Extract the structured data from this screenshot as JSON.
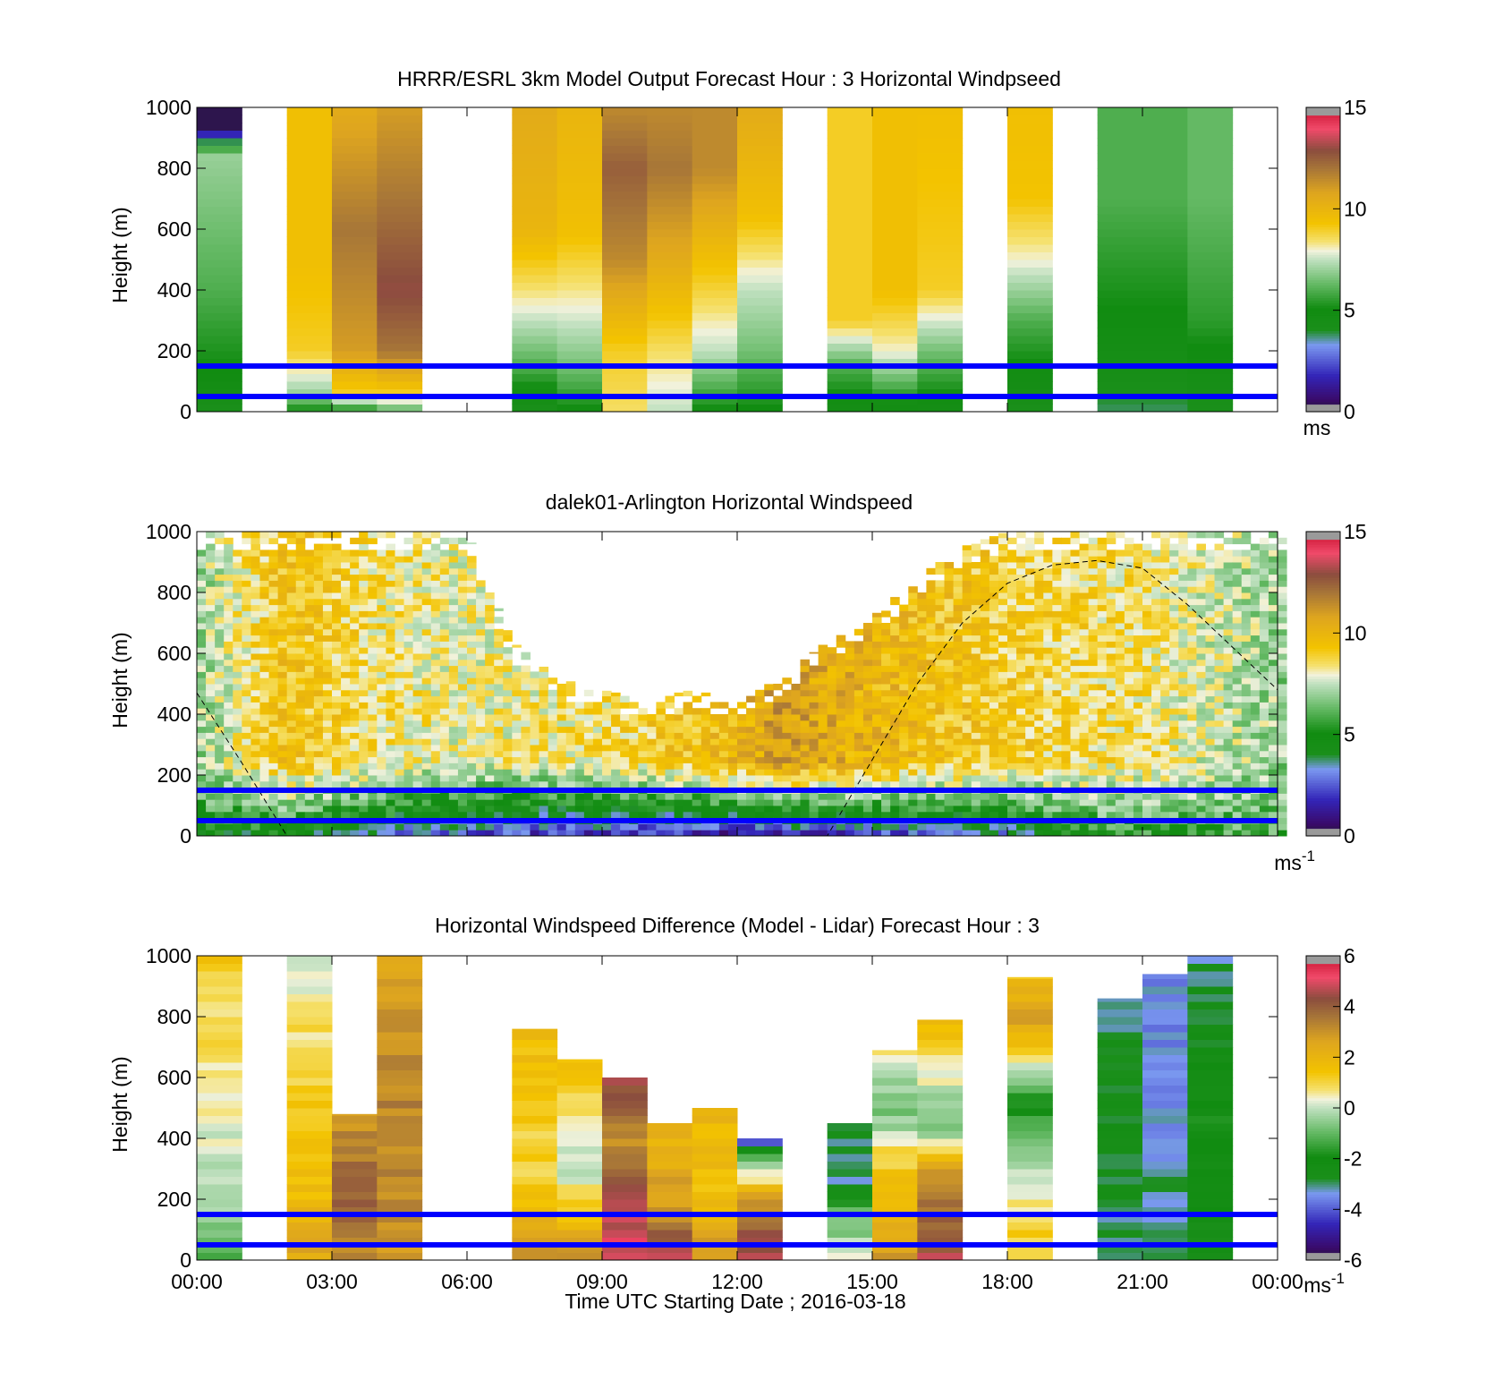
{
  "figure": {
    "xlabel": "Time UTC  Starting Date ; 2016-03-18",
    "x_ticks": [
      "00:00",
      "03:00",
      "06:00",
      "09:00",
      "12:00",
      "15:00",
      "18:00",
      "21:00",
      "00:00"
    ]
  },
  "colors": {
    "reference_lines": "#0000ff",
    "background": "#ffffff"
  },
  "chart_data": [
    {
      "type": "heatmap",
      "title": "HRRR/ESRL 3km Model Output   Forecast Hour : 3 Horizontal Windpseed",
      "ylabel": "Height (m)",
      "xlim": [
        0,
        24
      ],
      "ylim": [
        0,
        1000
      ],
      "y_ticks": [
        0,
        200,
        400,
        600,
        800,
        1000
      ],
      "colorbar": {
        "min": 0,
        "max": 15,
        "ticks": [
          0,
          5,
          10,
          15
        ],
        "unit": "ms",
        "unit_sup": ""
      },
      "reference_lines_m": [
        50,
        150
      ],
      "columns": [
        {
          "t": 0,
          "profile": [
            [
              0,
              4
            ],
            [
              120,
              5
            ],
            [
              400,
              6
            ],
            [
              850,
              7
            ],
            [
              930,
              0.3
            ]
          ]
        },
        {
          "t": 2,
          "profile": [
            [
              0,
              5
            ],
            [
              60,
              7
            ],
            [
              200,
              9
            ],
            [
              500,
              9.5
            ],
            [
              1000,
              9.5
            ]
          ]
        },
        {
          "t": 3,
          "profile": [
            [
              0,
              5
            ],
            [
              60,
              9
            ],
            [
              200,
              11
            ],
            [
              600,
              12
            ],
            [
              1000,
              10.5
            ]
          ]
        },
        {
          "t": 4,
          "profile": [
            [
              0,
              6
            ],
            [
              60,
              9
            ],
            [
              200,
              12
            ],
            [
              400,
              13
            ],
            [
              1000,
              11
            ]
          ]
        },
        {
          "t": 7,
          "profile": [
            [
              0,
              4
            ],
            [
              150,
              6
            ],
            [
              350,
              8
            ],
            [
              600,
              10
            ],
            [
              1000,
              10.5
            ]
          ]
        },
        {
          "t": 8,
          "profile": [
            [
              0,
              5
            ],
            [
              150,
              6.5
            ],
            [
              350,
              8
            ],
            [
              600,
              9.5
            ],
            [
              1000,
              10
            ]
          ]
        },
        {
          "t": 9,
          "profile": [
            [
              0,
              8.5
            ],
            [
              200,
              9
            ],
            [
              500,
              11.5
            ],
            [
              800,
              12.5
            ],
            [
              1000,
              11.5
            ]
          ]
        },
        {
          "t": 10,
          "profile": [
            [
              0,
              7.5
            ],
            [
              200,
              8.5
            ],
            [
              500,
              10.5
            ],
            [
              800,
              12
            ],
            [
              1000,
              11.5
            ]
          ]
        },
        {
          "t": 11,
          "profile": [
            [
              0,
              5
            ],
            [
              200,
              7.5
            ],
            [
              500,
              9.5
            ],
            [
              800,
              11.5
            ],
            [
              1000,
              11.5
            ]
          ]
        },
        {
          "t": 12,
          "profile": [
            [
              0,
              5
            ],
            [
              200,
              6.5
            ],
            [
              400,
              7.5
            ],
            [
              650,
              9.5
            ],
            [
              1000,
              10.5
            ]
          ]
        },
        {
          "t": 14,
          "profile": [
            [
              0,
              4.5
            ],
            [
              150,
              6
            ],
            [
              300,
              9
            ],
            [
              700,
              9
            ],
            [
              1000,
              9
            ]
          ]
        },
        {
          "t": 15,
          "profile": [
            [
              0,
              4.5
            ],
            [
              200,
              8
            ],
            [
              400,
              9.5
            ],
            [
              1000,
              9.5
            ]
          ]
        },
        {
          "t": 16,
          "profile": [
            [
              0,
              4.5
            ],
            [
              200,
              6.5
            ],
            [
              400,
              9
            ],
            [
              1000,
              9.5
            ]
          ]
        },
        {
          "t": 18,
          "profile": [
            [
              0,
              4
            ],
            [
              300,
              6
            ],
            [
              500,
              8
            ],
            [
              700,
              9.3
            ],
            [
              1000,
              9.5
            ]
          ]
        },
        {
          "t": 20,
          "profile": [
            [
              0,
              3.8
            ],
            [
              300,
              5
            ],
            [
              700,
              6
            ],
            [
              1000,
              6
            ]
          ]
        },
        {
          "t": 21,
          "profile": [
            [
              0,
              3.8
            ],
            [
              300,
              5
            ],
            [
              700,
              6
            ],
            [
              1000,
              6
            ]
          ]
        },
        {
          "t": 22,
          "profile": [
            [
              0,
              4
            ],
            [
              300,
              5.5
            ],
            [
              700,
              6.3
            ],
            [
              1000,
              6.3
            ]
          ]
        }
      ]
    },
    {
      "type": "heatmap",
      "title": "dalek01-Arlington  Horizontal Windspeed",
      "ylabel": "Height (m)",
      "xlim": [
        0,
        24
      ],
      "ylim": [
        0,
        1000
      ],
      "y_ticks": [
        0,
        200,
        400,
        600,
        800,
        1000
      ],
      "colorbar": {
        "min": 0,
        "max": 15,
        "ticks": [
          0,
          5,
          10,
          15
        ],
        "unit": "ms",
        "unit_sup": "-1"
      },
      "reference_lines_m": [
        50,
        150
      ],
      "boundary_layer_curve": [
        [
          0,
          470
        ],
        [
          1,
          240
        ],
        [
          2,
          0
        ],
        [
          14,
          0
        ],
        [
          15,
          250
        ],
        [
          16,
          500
        ],
        [
          17,
          700
        ],
        [
          18,
          830
        ],
        [
          19,
          890
        ],
        [
          20,
          905
        ],
        [
          21,
          880
        ],
        [
          22,
          760
        ],
        [
          23,
          620
        ],
        [
          24,
          480
        ]
      ],
      "top_of_data_m": [
        [
          0,
          1000
        ],
        [
          6,
          1000
        ],
        [
          7,
          640
        ],
        [
          8,
          520
        ],
        [
          9,
          480
        ],
        [
          10,
          450
        ],
        [
          11,
          480
        ],
        [
          12,
          450
        ],
        [
          13,
          520
        ],
        [
          14,
          640
        ],
        [
          15,
          720
        ],
        [
          16,
          850
        ],
        [
          17,
          950
        ],
        [
          18,
          1000
        ],
        [
          24,
          1000
        ]
      ],
      "surface_speed": [
        [
          0,
          5
        ],
        [
          6,
          2
        ],
        [
          9,
          1.5
        ],
        [
          12,
          1
        ],
        [
          14,
          1.5
        ],
        [
          16,
          2
        ],
        [
          18,
          3
        ],
        [
          20,
          5
        ],
        [
          24,
          6
        ]
      ],
      "upper_speed": [
        [
          0,
          7
        ],
        [
          2,
          9.5
        ],
        [
          4,
          8.5
        ],
        [
          6,
          8
        ],
        [
          9,
          8.5
        ],
        [
          12,
          10
        ],
        [
          13,
          11
        ],
        [
          15,
          10
        ],
        [
          18,
          9
        ],
        [
          21,
          8.5
        ],
        [
          24,
          7
        ]
      ]
    },
    {
      "type": "heatmap",
      "title": "Horizontal Windspeed Difference (Model - Lidar) Forecast Hour : 3",
      "ylabel": "Height (m)",
      "xlim": [
        0,
        24
      ],
      "ylim": [
        0,
        1000
      ],
      "y_ticks": [
        0,
        200,
        400,
        600,
        800,
        1000
      ],
      "colorbar": {
        "min": -6,
        "max": 6,
        "ticks": [
          -6,
          -4,
          -2,
          0,
          2,
          4,
          6
        ],
        "unit": "ms",
        "unit_sup": "-1"
      },
      "reference_lines_m": [
        50,
        150
      ],
      "columns": [
        {
          "t": 0,
          "top": 1000,
          "profile": [
            [
              0,
              -1
            ],
            [
              300,
              0
            ],
            [
              700,
              0.8
            ],
            [
              1000,
              1.3
            ]
          ]
        },
        {
          "t": 2,
          "top": 1000,
          "profile": [
            [
              0,
              2.5
            ],
            [
              300,
              1.5
            ],
            [
              700,
              1
            ],
            [
              1000,
              0
            ]
          ]
        },
        {
          "t": 3,
          "top": 480,
          "profile": [
            [
              0,
              3
            ],
            [
              200,
              4
            ],
            [
              480,
              3
            ]
          ]
        },
        {
          "t": 4,
          "top": 1000,
          "profile": [
            [
              0,
              3
            ],
            [
              500,
              3.3
            ],
            [
              1000,
              2.5
            ]
          ]
        },
        {
          "t": 7,
          "top": 760,
          "profile": [
            [
              0,
              3
            ],
            [
              300,
              1
            ],
            [
              760,
              1.8
            ]
          ]
        },
        {
          "t": 8,
          "top": 660,
          "profile": [
            [
              0,
              3
            ],
            [
              300,
              0
            ],
            [
              660,
              1.5
            ]
          ]
        },
        {
          "t": 9,
          "top": 600,
          "profile": [
            [
              0,
              5
            ],
            [
              250,
              4.5
            ],
            [
              400,
              3
            ],
            [
              600,
              4.5
            ]
          ]
        },
        {
          "t": 10,
          "top": 450,
          "profile": [
            [
              0,
              5
            ],
            [
              150,
              3
            ],
            [
              450,
              2
            ]
          ]
        },
        {
          "t": 11,
          "top": 500,
          "profile": [
            [
              0,
              3
            ],
            [
              250,
              1.5
            ],
            [
              500,
              2
            ]
          ]
        },
        {
          "t": 12,
          "top": 400,
          "profile": [
            [
              0,
              5
            ],
            [
              200,
              3
            ],
            [
              370,
              -2.5
            ],
            [
              400,
              -5
            ]
          ]
        },
        {
          "t": 14,
          "top": 450,
          "profile": [
            [
              0,
              0.5
            ],
            [
              150,
              -1
            ],
            [
              250,
              -3
            ],
            [
              450,
              -3
            ]
          ]
        },
        {
          "t": 15,
          "top": 690,
          "profile": [
            [
              0,
              3
            ],
            [
              350,
              1
            ],
            [
              500,
              -1
            ],
            [
              690,
              0.5
            ]
          ]
        },
        {
          "t": 16,
          "top": 790,
          "profile": [
            [
              0,
              4.5
            ],
            [
              250,
              3.5
            ],
            [
              450,
              -1
            ],
            [
              790,
              2
            ]
          ]
        },
        {
          "t": 18,
          "top": 930,
          "profile": [
            [
              0,
              1.3
            ],
            [
              250,
              0.5
            ],
            [
              500,
              -2
            ],
            [
              800,
              3
            ],
            [
              930,
              1.5
            ]
          ]
        },
        {
          "t": 20,
          "top": 860,
          "profile": [
            [
              0,
              -3
            ],
            [
              500,
              -2.5
            ],
            [
              860,
              -3
            ]
          ]
        },
        {
          "t": 21,
          "top": 940,
          "profile": [
            [
              0,
              -3
            ],
            [
              500,
              -3.3
            ],
            [
              940,
              -3.5
            ]
          ]
        },
        {
          "t": 22,
          "top": 1000,
          "profile": [
            [
              0,
              -2.5
            ],
            [
              500,
              -2
            ],
            [
              1000,
              -3
            ]
          ]
        }
      ]
    }
  ]
}
